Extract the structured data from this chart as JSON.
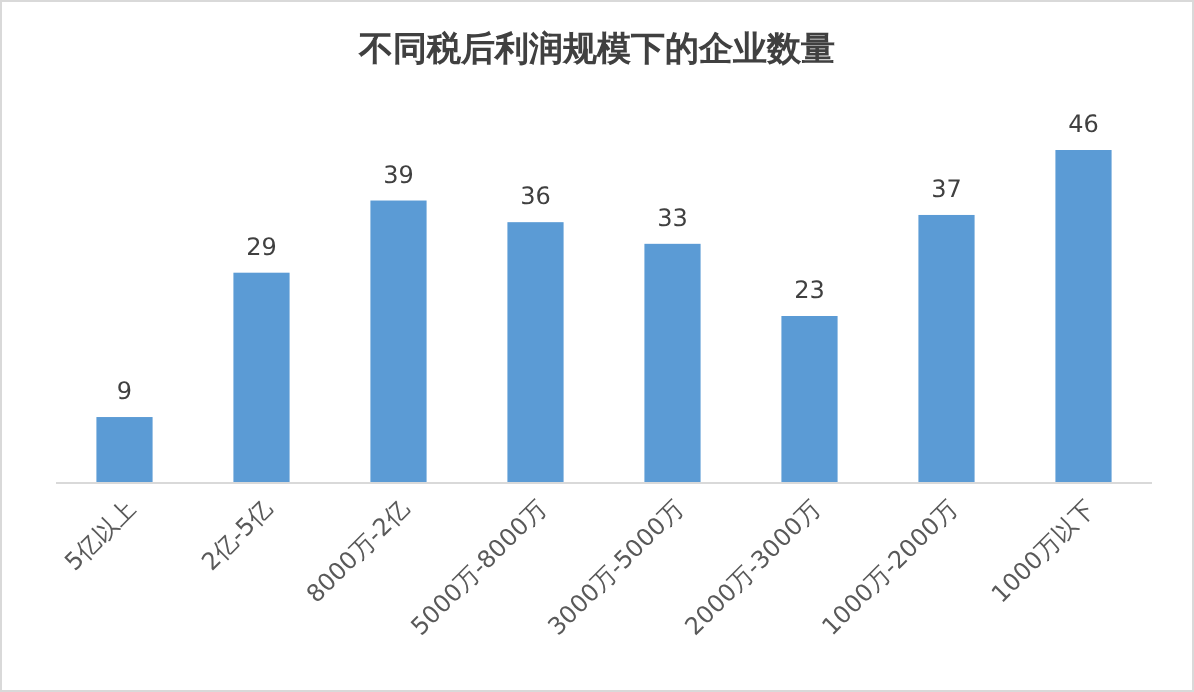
{
  "chart_data": {
    "type": "bar",
    "title": "不同税后利润规模下的企业数量",
    "categories": [
      "5亿以上",
      "2亿-5亿",
      "8000万-2亿",
      "5000万-8000万",
      "3000万-5000万",
      "2000万-3000万",
      "1000万-2000万",
      "1000万以下"
    ],
    "values": [
      9,
      29,
      39,
      36,
      33,
      23,
      37,
      46
    ],
    "color": "#5b9bd5",
    "data_labels": true
  }
}
